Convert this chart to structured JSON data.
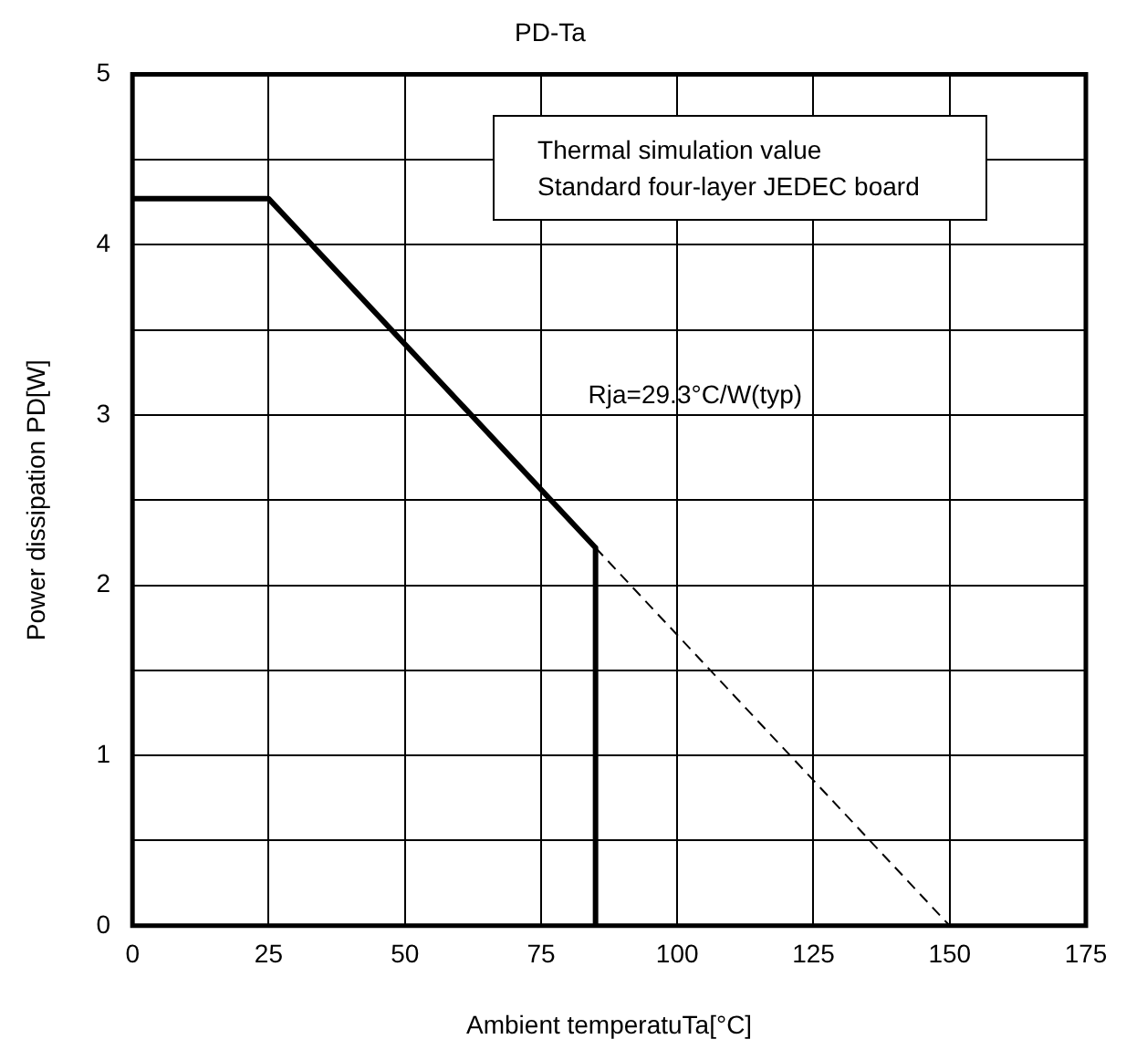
{
  "chart_data": {
    "type": "line",
    "title": "PD-Ta",
    "xlabel": "Ambient temperatuTa[°C]",
    "ylabel": "Power dissipation PD[W]",
    "x": [
      0,
      25,
      85,
      85
    ],
    "series": [
      {
        "color": "#000000",
        "values": [
          4.27,
          4.27,
          2.22,
          0
        ],
        "line_style": "solid"
      },
      {
        "color": "#000000",
        "x": [
          85,
          150
        ],
        "values": [
          2.22,
          0
        ],
        "line_style": "dashed"
      }
    ],
    "xlim": [
      0,
      175
    ],
    "xticks": [
      0,
      25,
      50,
      75,
      100,
      125,
      150,
      175
    ],
    "ylim": [
      0,
      5
    ],
    "yticks": [
      0,
      {
        "value": 0.5,
        "label": null
      },
      1,
      {
        "value": 1.5,
        "label": null
      },
      2,
      {
        "value": 2.5,
        "label": null
      },
      3,
      {
        "value": 3.5,
        "label": null
      },
      4,
      {
        "value": 4.5,
        "label": null
      },
      5
    ],
    "grid": true,
    "legend": false,
    "marker": "none",
    "annotations": [
      "Thermal simulation value",
      "Standard four-layer JEDEC board",
      "Rja=29.3°C/W(typ)"
    ]
  }
}
